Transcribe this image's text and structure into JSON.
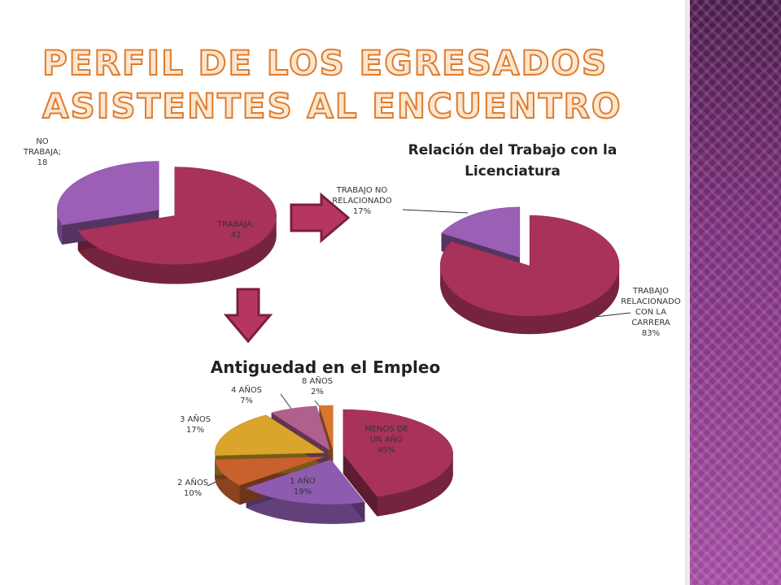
{
  "page": {
    "title_line1": "PERFIL DE LOS EGRESADOS",
    "title_line2": "ASISTENTES AL ENCUENTRO"
  },
  "chart_data": [
    {
      "type": "pie",
      "categories": [
        "TRABAJA;",
        "NO TRABAJA;"
      ],
      "values": [
        42,
        18
      ],
      "colors": [
        "#a8325a",
        "#9b5fb5"
      ]
    },
    {
      "type": "pie",
      "title": "Relación del Trabajo con la Licenciatura",
      "categories": [
        "TRABAJO NO RELACIONADO",
        "TRABAJO RELACIONADO CON LA CARRERA"
      ],
      "values": [
        17,
        83
      ],
      "value_labels": [
        "17%",
        "83%"
      ],
      "colors": [
        "#9b5fb5",
        "#a8325a"
      ]
    },
    {
      "type": "pie",
      "title": "Antiguedad en el Empleo",
      "categories": [
        "MENOS DE UN AÑO",
        "1 AÑO",
        "2 AÑOS",
        "3 AÑOS",
        "4 AÑOS",
        "8 AÑOS"
      ],
      "values": [
        45,
        19,
        10,
        17,
        7,
        2
      ],
      "value_labels": [
        "45%",
        "19%",
        "10%",
        "17%",
        "7%",
        "2%"
      ],
      "colors": [
        "#a8325a",
        "#8f5bb0",
        "#c8612e",
        "#d9a52a",
        "#b0608f",
        "#d9772f"
      ]
    }
  ]
}
